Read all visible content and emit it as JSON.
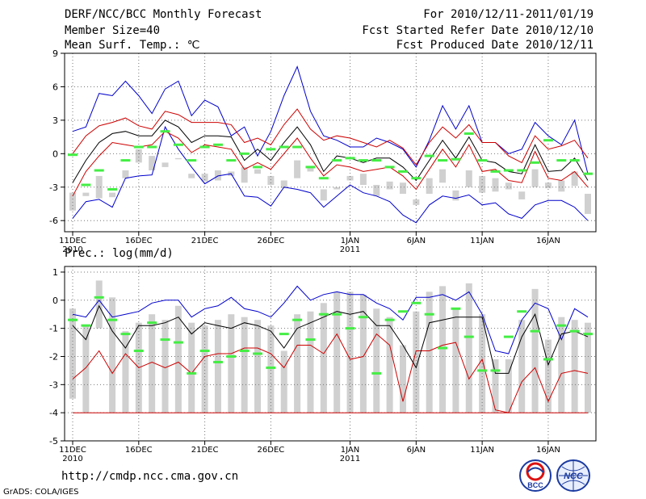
{
  "header": {
    "title": "DERF/NCC/BCC Monthly Forecast",
    "member_size": "Member Size=40",
    "variable": "Mean Surf. Temp.: ℃",
    "period": "For 2010/12/11-2011/01/19",
    "started": "Fcst Started Refer Date 2010/12/10",
    "produced": "Fcst Produced Date 2010/12/11"
  },
  "footer": {
    "url": "http://cmdp.ncc.cma.gov.cn",
    "credit": "GrADS: COLA/IGES",
    "logo_left_text": "BCC",
    "logo_right_text": "NCC"
  },
  "colors": {
    "max_line": "#0000cc",
    "min_line": "#cc0000",
    "mean_line": "#000000",
    "spread_line": "#cc0000",
    "box": "#d0d0d0",
    "median": "#44ee44"
  },
  "chart_data": [
    {
      "type": "line",
      "title": "Mean Surf. Temp.: ℃",
      "ylim": [
        -7,
        9
      ],
      "yticks": [
        -6,
        -3,
        0,
        3,
        6,
        9
      ],
      "x_tick_labels": [
        "11DEC",
        "16DEC",
        "21DEC",
        "26DEC",
        "1JAN",
        "6JAN",
        "11JAN",
        "16JAN"
      ],
      "x_tick_days": [
        1,
        6,
        11,
        16,
        22,
        27,
        32,
        37
      ],
      "x_sub_labels": [
        {
          "day": 1,
          "text": "2010"
        },
        {
          "day": 22,
          "text": "2011"
        }
      ],
      "days": 40,
      "series": [
        {
          "name": "max",
          "values": [
            -5.8,
            -4.3,
            -4.1,
            -4.8,
            -2.2,
            -2.0,
            -1.9,
            2.4,
            0.4,
            -1.2,
            -2.7,
            -2.0,
            -1.8,
            -3.8,
            -3.9,
            -4.7,
            -3.0,
            -3.2,
            -3.5,
            -4.8,
            -3.8,
            -2.8,
            -3.5,
            -3.8,
            -4.3,
            -5.5,
            -6.2,
            -4.6,
            -3.8,
            -4.0,
            -3.7,
            -4.6,
            -4.4,
            -5.4,
            -5.8,
            -4.6,
            -4.2,
            -4.2,
            -4.8,
            -6.0
          ]
        },
        {
          "name": "spread_high",
          "values": [
            0.0,
            1.6,
            2.5,
            2.8,
            3.2,
            2.5,
            2.2,
            3.8,
            3.5,
            2.8,
            2.8,
            2.8,
            2.6,
            1.0,
            1.4,
            0.8,
            2.6,
            4.0,
            2.2,
            1.2,
            1.6,
            1.4,
            1.0,
            0.6,
            1.2,
            0.5,
            -1.0,
            1.0,
            2.4,
            1.4,
            2.6,
            1.0,
            1.0,
            -0.2,
            -0.8,
            1.6,
            0.4,
            0.7,
            1.2,
            -0.4
          ]
        },
        {
          "name": "mean",
          "values": [
            -2.6,
            -0.6,
            1.0,
            1.8,
            2.0,
            1.6,
            1.6,
            3.0,
            2.4,
            1.0,
            1.6,
            1.6,
            1.5,
            -0.6,
            0.4,
            -0.6,
            1.0,
            2.4,
            0.8,
            -1.6,
            -0.2,
            -0.4,
            -0.8,
            -0.4,
            -0.4,
            -1.2,
            -2.4,
            -0.6,
            1.2,
            -0.4,
            1.5,
            -0.6,
            -0.8,
            -1.6,
            -1.8,
            0.8,
            -1.6,
            -1.5,
            -0.4,
            -2.4
          ]
        },
        {
          "name": "spread_low",
          "values": [
            -3.8,
            -1.6,
            -0.2,
            1.0,
            0.8,
            0.6,
            0.8,
            2.0,
            1.4,
            0.1,
            0.8,
            0.6,
            0.4,
            -1.4,
            -0.8,
            -1.4,
            0.0,
            1.4,
            -0.4,
            -2.0,
            -1.0,
            -1.2,
            -1.6,
            -1.4,
            -1.2,
            -2.0,
            -3.2,
            -1.4,
            0.4,
            -1.2,
            0.8,
            -1.6,
            -1.4,
            -2.4,
            -2.6,
            0.2,
            -2.2,
            -2.4,
            -1.6,
            -3.0
          ]
        },
        {
          "name": "min",
          "values": [
            2.0,
            2.4,
            5.4,
            5.2,
            6.5,
            5.2,
            3.6,
            5.8,
            6.5,
            3.4,
            4.8,
            4.2,
            1.6,
            2.4,
            -0.2,
            2.0,
            5.2,
            7.8,
            3.8,
            1.6,
            1.2,
            0.6,
            0.6,
            1.4,
            1.0,
            0.4,
            -1.2,
            1.2,
            4.3,
            2.2,
            4.3,
            1.0,
            1.0,
            0.0,
            0.4,
            2.8,
            1.6,
            0.8,
            3.0,
            -1.8
          ]
        },
        {
          "name": "box_low",
          "values": [
            -3.5,
            -3.8,
            -4.0,
            -3.5,
            -2.2,
            -0.8,
            -1.5,
            -1.2,
            -0.5,
            -1.8,
            -2.5,
            -1.5,
            -1.6,
            -1.2,
            -1.4,
            -2.0,
            -2.4,
            -0.6,
            -1.2,
            -3.2,
            -3.2,
            -2.4,
            -1.8,
            -2.8,
            -2.5,
            -2.6,
            -4.1,
            -2.2,
            -1.4,
            -3.3,
            -1.5,
            -2.0,
            -2.2,
            -2.6,
            -3.4,
            -1.4,
            -2.6,
            -2.4,
            -1.6,
            -3.6
          ]
        },
        {
          "name": "box_high",
          "values": [
            -5.1,
            -3.5,
            -2.0,
            -3.9,
            -1.5,
            0.4,
            -0.2,
            -0.8,
            -0.4,
            -2.2,
            -1.8,
            -2.4,
            -2.0,
            -2.6,
            -1.8,
            -2.8,
            -3.1,
            -2.2,
            -1.6,
            -4.2,
            -3.0,
            -2.0,
            -2.8,
            -3.8,
            -3.2,
            -3.6,
            -4.6,
            -3.6,
            -2.6,
            -4.2,
            -3.0,
            -3.5,
            -3.4,
            -3.2,
            -4.1,
            -3.0,
            -3.1,
            -3.4,
            -2.9,
            -5.4
          ]
        },
        {
          "name": "median",
          "values": [
            -0.1,
            -2.8,
            -1.5,
            -3.2,
            -0.6,
            0.6,
            0.6,
            2.0,
            0.8,
            -0.6,
            0.6,
            0.8,
            -0.6,
            0.0,
            -1.2,
            0.4,
            0.6,
            0.6,
            -1.2,
            -2.2,
            -0.6,
            -0.4,
            -0.6,
            -0.6,
            -1.2,
            -1.6,
            -2.2,
            -0.2,
            -0.6,
            -0.5,
            1.8,
            -0.6,
            -1.6,
            -1.5,
            -1.5,
            -0.8,
            1.2,
            -0.6,
            -0.6,
            -1.8
          ]
        }
      ]
    },
    {
      "type": "line",
      "title": "Prec.: log(mm/d)",
      "ylim": [
        -5,
        1.2
      ],
      "yticks": [
        -5,
        -4,
        -3,
        -2,
        -1,
        0,
        1
      ],
      "x_tick_labels": [
        "11DEC",
        "16DEC",
        "21DEC",
        "26DEC",
        "1JAN",
        "6JAN",
        "11JAN",
        "16JAN"
      ],
      "x_tick_days": [
        1,
        6,
        11,
        16,
        22,
        27,
        32,
        37
      ],
      "x_sub_labels": [
        {
          "day": 1,
          "text": "2010"
        },
        {
          "day": 22,
          "text": "2011"
        }
      ],
      "days": 40,
      "series": [
        {
          "name": "max",
          "values": [
            -0.5,
            -0.6,
            0.0,
            -0.6,
            -0.5,
            -0.4,
            -0.1,
            0.0,
            0.0,
            -0.6,
            -0.3,
            -0.2,
            0.1,
            -0.3,
            -0.4,
            -0.6,
            -0.1,
            0.5,
            0.0,
            0.2,
            0.3,
            0.2,
            0.2,
            -0.1,
            -0.3,
            -0.7,
            0.1,
            0.1,
            0.2,
            0.0,
            0.3,
            -0.5,
            -1.8,
            -1.9,
            -0.7,
            -0.1,
            -0.3,
            -1.4,
            -0.3,
            -0.6
          ]
        },
        {
          "name": "mean",
          "values": [
            -0.9,
            -1.4,
            -0.2,
            -1.1,
            -1.7,
            -0.9,
            -0.9,
            -0.8,
            -0.6,
            -1.2,
            -0.8,
            -0.9,
            -1.0,
            -0.8,
            -0.9,
            -1.1,
            -1.7,
            -1.0,
            -0.8,
            -0.6,
            -0.4,
            -0.5,
            -0.4,
            -0.9,
            -0.9,
            -1.6,
            -2.4,
            -0.8,
            -0.7,
            -0.6,
            -0.6,
            -0.6,
            -2.6,
            -2.6,
            -1.3,
            -0.5,
            -2.3,
            -1.2,
            -1.1,
            -1.3
          ]
        },
        {
          "name": "min",
          "values": [
            -2.8,
            -2.4,
            -1.8,
            -2.6,
            -1.9,
            -2.4,
            -2.2,
            -2.4,
            -2.2,
            -2.6,
            -2.0,
            -1.9,
            -1.9,
            -1.7,
            -1.7,
            -1.9,
            -2.4,
            -1.6,
            -1.6,
            -1.9,
            -1.2,
            -2.1,
            -2.0,
            -1.2,
            -1.6,
            -3.6,
            -1.8,
            -1.8,
            -1.6,
            -1.5,
            -2.8,
            -2.1,
            -3.9,
            -4.0,
            -2.9,
            -2.4,
            -3.6,
            -2.6,
            -2.5,
            -2.6
          ]
        },
        {
          "name": "floor",
          "values": [
            -4.0,
            -4.0,
            -4.0,
            -4.0,
            -4.0,
            -4.0,
            -4.0,
            -4.0,
            -4.0,
            -4.0,
            -4.0,
            -4.0,
            -4.0,
            -4.0,
            -4.0,
            -4.0,
            -4.0,
            -4.0,
            -4.0,
            -4.0,
            -4.0,
            -4.0,
            -4.0,
            -4.0,
            -4.0,
            -4.0,
            -4.0,
            -4.0,
            -4.0,
            -4.0,
            -4.0,
            -4.0,
            -4.0,
            -4.0,
            -4.0,
            -4.0,
            -4.0,
            -4.0,
            -4.0,
            -4.0
          ]
        },
        {
          "name": "box_high",
          "values": [
            -0.3,
            -0.9,
            0.7,
            0.1,
            -1.1,
            -0.8,
            -0.5,
            -0.7,
            -0.2,
            -0.8,
            -0.9,
            -0.7,
            -0.5,
            -0.6,
            -0.7,
            -0.9,
            -1.8,
            -0.5,
            -0.4,
            -0.1,
            0.3,
            0.3,
            0.2,
            -0.3,
            -0.6,
            -1.6,
            -0.4,
            0.3,
            0.5,
            -0.3,
            0.6,
            -0.5,
            -2.1,
            -2.1,
            -0.7,
            0.4,
            -1.4,
            -0.6,
            -0.7,
            -0.8
          ]
        },
        {
          "name": "box_low",
          "values": [
            -3.5,
            -4.0,
            -1.0,
            -4.0,
            -4.0,
            -4.0,
            -4.0,
            -4.0,
            -4.0,
            -4.0,
            -4.0,
            -4.0,
            -4.0,
            -4.0,
            -4.0,
            -4.0,
            -4.0,
            -4.0,
            -4.0,
            -4.0,
            -4.0,
            -4.0,
            -4.0,
            -4.0,
            -4.0,
            -4.0,
            -4.0,
            -4.0,
            -4.0,
            -4.0,
            -4.0,
            -4.0,
            -4.0,
            -4.0,
            -4.0,
            -4.0,
            -4.0,
            -4.0,
            -4.0,
            -4.0
          ]
        },
        {
          "name": "median",
          "values": [
            -0.7,
            -0.9,
            0.1,
            -0.7,
            -1.2,
            -1.8,
            -0.8,
            -1.4,
            -1.5,
            -2.6,
            -1.8,
            -2.2,
            -2.0,
            -1.8,
            -1.9,
            -2.4,
            -1.2,
            -0.7,
            -1.4,
            -0.5,
            -0.5,
            -1.0,
            -0.6,
            -2.6,
            -0.7,
            -0.4,
            -0.1,
            -0.5,
            -1.7,
            -0.3,
            -1.3,
            -2.5,
            -2.5,
            -1.3,
            -0.4,
            -1.1,
            -2.1,
            -0.9,
            -1.1,
            -1.2
          ]
        }
      ]
    }
  ]
}
